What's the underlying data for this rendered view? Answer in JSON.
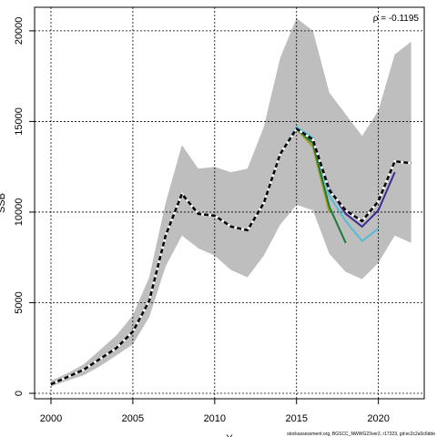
{
  "chart_data": {
    "type": "line",
    "title": "",
    "xlabel": "Y",
    "ylabel": "SSB",
    "xlim": [
      1999.0,
      2022.8
    ],
    "ylim": [
      -300,
      21300
    ],
    "grid": true,
    "x_ticks": [
      2000,
      2005,
      2010,
      2015,
      2020
    ],
    "y_ticks": [
      0,
      5000,
      10000,
      15000,
      20000
    ],
    "annotation": "ρ = -0.1195",
    "footer": "stockassessment.org, BGSCC_NWWG23ver2, r17323, git:ec2c2a0c6dde",
    "band": {
      "color": "#bebebe",
      "x": [
        2000,
        2001,
        2002,
        2003,
        2004,
        2005,
        2006,
        2007,
        2008,
        2009,
        2010,
        2011,
        2012,
        2013,
        2014,
        2015,
        2016,
        2017,
        2018,
        2019,
        2020,
        2021,
        2022
      ],
      "lower": [
        380,
        700,
        1000,
        1500,
        2100,
        2700,
        4200,
        7000,
        8700,
        8000,
        7600,
        6800,
        6400,
        7600,
        9300,
        10400,
        10100,
        7700,
        6700,
        6300,
        7200,
        8700,
        8300
      ],
      "upper": [
        700,
        1100,
        1600,
        2400,
        3200,
        4300,
        6400,
        10500,
        13700,
        12400,
        12500,
        12200,
        12400,
        14700,
        18500,
        20700,
        20000,
        16600,
        15400,
        14200,
        15600,
        18700,
        19400
      ]
    },
    "series": [
      {
        "color": "#000000",
        "dashed": true,
        "width": 2.5,
        "x": [
          2000,
          2001,
          2002,
          2003,
          2004,
          2005,
          2006,
          2007,
          2008,
          2009,
          2010,
          2011,
          2012,
          2013,
          2014,
          2015,
          2016,
          2017,
          2018,
          2019,
          2020,
          2021,
          2022
        ],
        "values": [
          500,
          900,
          1300,
          1900,
          2500,
          3400,
          5100,
          8700,
          11000,
          9900,
          9800,
          9200,
          9000,
          10500,
          13200,
          14600,
          14000,
          11200,
          10100,
          9500,
          10600,
          12800,
          12700
        ]
      },
      {
        "color": "#3b2d91",
        "dashed": false,
        "width": 2,
        "x": [
          2000,
          2001,
          2002,
          2003,
          2004,
          2005,
          2006,
          2007,
          2008,
          2009,
          2010,
          2011,
          2012,
          2013,
          2014,
          2015,
          2016,
          2017,
          2018,
          2019,
          2020,
          2021
        ],
        "values": [
          500,
          900,
          1300,
          1900,
          2500,
          3400,
          5100,
          8700,
          11000,
          9900,
          9800,
          9200,
          9000,
          10500,
          13200,
          14600,
          14000,
          11300,
          9900,
          9200,
          10100,
          12200
        ]
      },
      {
        "color": "#55bcd6",
        "dashed": false,
        "width": 2,
        "x": [
          2000,
          2001,
          2002,
          2003,
          2004,
          2005,
          2006,
          2007,
          2008,
          2009,
          2010,
          2011,
          2012,
          2013,
          2014,
          2015,
          2016,
          2017,
          2018,
          2019,
          2020
        ],
        "values": [
          500,
          900,
          1300,
          1900,
          2500,
          3400,
          5100,
          8700,
          11000,
          9900,
          9800,
          9200,
          9000,
          10500,
          13200,
          14700,
          14100,
          10900,
          9500,
          8400,
          9100
        ]
      },
      {
        "color": "#1a7a38",
        "dashed": false,
        "width": 2,
        "x": [
          2000,
          2001,
          2002,
          2003,
          2004,
          2005,
          2006,
          2007,
          2008,
          2009,
          2010,
          2011,
          2012,
          2013,
          2014,
          2015,
          2016,
          2017,
          2018
        ],
        "values": [
          500,
          900,
          1300,
          1900,
          2500,
          3400,
          5100,
          8700,
          11000,
          9900,
          9800,
          9200,
          9000,
          10500,
          13200,
          14600,
          13800,
          10300,
          8300
        ]
      },
      {
        "color": "#a0a020",
        "dashed": false,
        "width": 2,
        "x": [
          2000,
          2001,
          2002,
          2003,
          2004,
          2005,
          2006,
          2007,
          2008,
          2009,
          2010,
          2011,
          2012,
          2013,
          2014,
          2015,
          2016,
          2017
        ],
        "values": [
          500,
          900,
          1300,
          1900,
          2500,
          3400,
          5100,
          8700,
          11000,
          9900,
          9800,
          9200,
          9000,
          10500,
          13200,
          14600,
          13600,
          10000
        ]
      }
    ]
  }
}
